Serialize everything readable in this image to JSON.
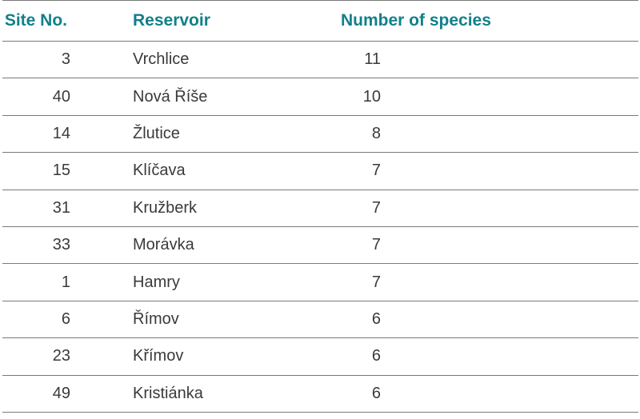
{
  "table": {
    "headers": {
      "site": "Site No.",
      "reservoir": "Reservoir",
      "species": "Number of species"
    },
    "rows": [
      {
        "site": "3",
        "reservoir": "Vrchlice",
        "species": "11"
      },
      {
        "site": "40",
        "reservoir": "Nová Říše",
        "species": "10"
      },
      {
        "site": "14",
        "reservoir": "Žlutice",
        "species": "8"
      },
      {
        "site": "15",
        "reservoir": "Klíčava",
        "species": "7"
      },
      {
        "site": "31",
        "reservoir": "Kružberk",
        "species": "7"
      },
      {
        "site": "33",
        "reservoir": "Morávka",
        "species": "7"
      },
      {
        "site": "1",
        "reservoir": "Hamry",
        "species": "7"
      },
      {
        "site": "6",
        "reservoir": "Římov",
        "species": "6"
      },
      {
        "site": "23",
        "reservoir": "Křímov",
        "species": "6"
      },
      {
        "site": "49",
        "reservoir": "Kristiánka",
        "species": "6"
      }
    ],
    "colors": {
      "header_text": "#12808a",
      "body_text": "#3a3a3a",
      "rule": "#7a7a7a"
    }
  }
}
